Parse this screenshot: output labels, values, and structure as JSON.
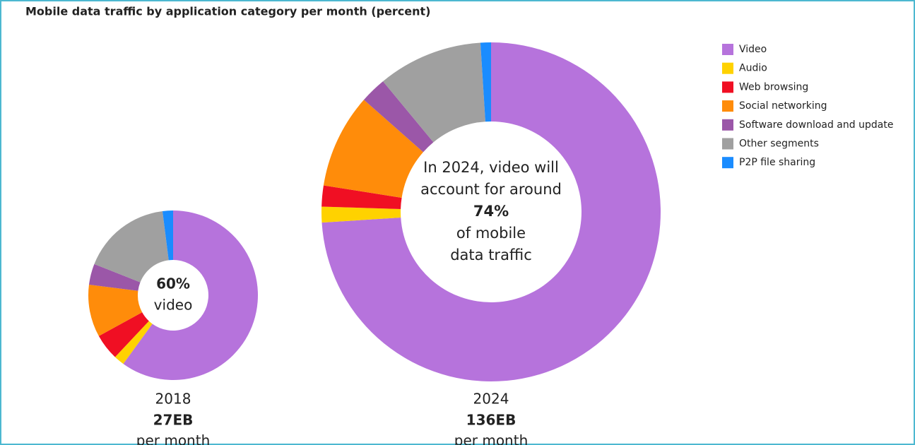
{
  "chart_data": [
    {
      "type": "donut",
      "title": "Mobile data traffic by application category per month (percent)",
      "categories": [
        "Video",
        "Audio",
        "Web browsing",
        "Social networking",
        "Software download and update",
        "Other segments",
        "P2P file sharing"
      ],
      "colors": [
        "#b673dc",
        "#ffd200",
        "#f00f23",
        "#ff8c0a",
        "#9b57a8",
        "#a0a0a0",
        "#1a8cff"
      ],
      "values": [
        60,
        2,
        5,
        10,
        4,
        17,
        2
      ],
      "center_text": [
        "60%",
        "video"
      ],
      "caption": [
        "2018",
        "27EB",
        "per month"
      ]
    },
    {
      "type": "donut",
      "categories": [
        "Video",
        "Audio",
        "Web browsing",
        "Social networking",
        "Software download and update",
        "Other segments",
        "P2P file sharing"
      ],
      "colors": [
        "#b673dc",
        "#ffd200",
        "#f00f23",
        "#ff8c0a",
        "#9b57a8",
        "#a0a0a0",
        "#1a8cff"
      ],
      "values": [
        74,
        1.5,
        2,
        9,
        2.5,
        10,
        1
      ],
      "center_text": [
        "In 2024, video will",
        "account for around",
        "74%",
        "of mobile",
        "data traffic"
      ],
      "caption": [
        "2024",
        "136EB",
        "per month"
      ]
    }
  ]
}
